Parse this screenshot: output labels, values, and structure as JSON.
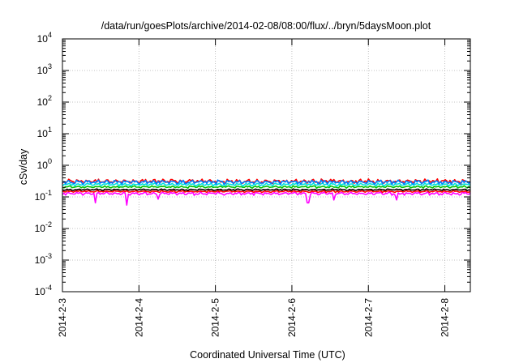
{
  "chart_data": {
    "type": "line",
    "title": "/data/run/goesPlots/archive/2014-02-08/08:00/flux/../bryn/5daysMoon.plot",
    "xlabel": "Coordinated Universal Time (UTC)",
    "ylabel": "cSv/day",
    "x_start": "2014-02-03T00:00",
    "x_end": "2014-02-08T08:00",
    "x_ticks": [
      {
        "label": "2014-2-3",
        "x": "2014-02-03T00:00"
      },
      {
        "label": "2014-2-4",
        "x": "2014-02-04T00:00"
      },
      {
        "label": "2014-2-5",
        "x": "2014-02-05T00:00"
      },
      {
        "label": "2014-2-6",
        "x": "2014-02-06T00:00"
      },
      {
        "label": "2014-2-7",
        "x": "2014-02-07T00:00"
      },
      {
        "label": "2014-2-8",
        "x": "2014-02-08T00:00"
      }
    ],
    "y_scale": "log",
    "ylim": [
      0.0001,
      10000
    ],
    "y_ticks": [
      {
        "base": "10",
        "exp": "4",
        "value": 10000
      },
      {
        "base": "10",
        "exp": "3",
        "value": 1000
      },
      {
        "base": "10",
        "exp": "2",
        "value": 100
      },
      {
        "base": "10",
        "exp": "1",
        "value": 10
      },
      {
        "base": "10",
        "exp": "0",
        "value": 1
      },
      {
        "base": "10",
        "exp": "-1",
        "value": 0.1
      },
      {
        "base": "10",
        "exp": "-2",
        "value": 0.01
      },
      {
        "base": "10",
        "exp": "-3",
        "value": 0.001
      },
      {
        "base": "10",
        "exp": "-4",
        "value": 0.0001
      }
    ],
    "grid": true,
    "series": [
      {
        "color": "#ff00ff",
        "level": 0.13,
        "spread": 0.1,
        "spikes": [
          {
            "x": "2014-02-03T10:30",
            "value": 0.065
          },
          {
            "x": "2014-02-03T20:00",
            "value": 0.055
          },
          {
            "x": "2014-02-04T06:00",
            "value": 0.085
          },
          {
            "x": "2014-02-06T05:00",
            "value": 0.065
          },
          {
            "x": "2014-02-06T13:00",
            "value": 0.08
          },
          {
            "x": "2014-02-07T09:00",
            "value": 0.08
          }
        ]
      },
      {
        "color": "#ff0000",
        "level": 0.15,
        "spread": 0.06,
        "spikes": []
      },
      {
        "color": "#000000",
        "level": 0.17,
        "spread": 0.05,
        "spikes": []
      },
      {
        "color": "#00c000",
        "level": 0.21,
        "spread": 0.07,
        "spikes": []
      },
      {
        "color": "#00e0e0",
        "level": 0.25,
        "spread": 0.09,
        "spikes": []
      },
      {
        "color": "#ff0000",
        "level": 0.32,
        "spread": 0.14,
        "spikes": []
      },
      {
        "color": "#0080ff",
        "level": 0.3,
        "spread": 0.13,
        "spikes": []
      }
    ]
  }
}
